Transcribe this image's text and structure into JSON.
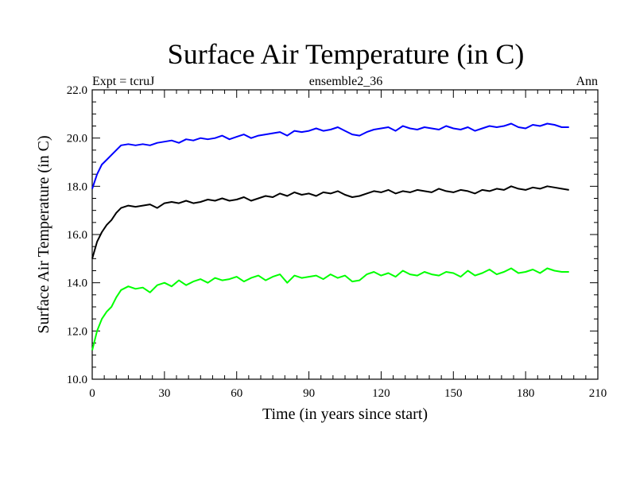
{
  "chart_data": {
    "type": "line",
    "title": "Surface Air Temperature (in C)",
    "subtitle_left": "Expt = tcruJ",
    "subtitle_center": "ensemble2_36",
    "subtitle_right": "Ann",
    "xlabel": "Time (in years since start)",
    "ylabel": "Surface Air Temperature (in C)",
    "xlim": [
      0,
      210
    ],
    "ylim": [
      10.0,
      22.0
    ],
    "xticks": [
      0,
      30,
      60,
      90,
      120,
      150,
      180,
      210
    ],
    "xtick_labels": [
      "0",
      "30",
      "60",
      "90",
      "120",
      "150",
      "180",
      "210"
    ],
    "yticks": [
      10,
      12,
      14,
      16,
      18,
      20,
      22
    ],
    "ytick_labels": [
      "10.0",
      "12.0",
      "14.0",
      "16.0",
      "18.0",
      "20.0",
      "22.0"
    ],
    "x": [
      0,
      2,
      4,
      6,
      8,
      10,
      12,
      15,
      18,
      21,
      24,
      27,
      30,
      33,
      36,
      39,
      42,
      45,
      48,
      51,
      54,
      57,
      60,
      63,
      66,
      69,
      72,
      75,
      78,
      81,
      84,
      87,
      90,
      93,
      96,
      99,
      102,
      105,
      108,
      111,
      114,
      117,
      120,
      123,
      126,
      129,
      132,
      135,
      138,
      141,
      144,
      147,
      150,
      153,
      156,
      159,
      162,
      165,
      168,
      171,
      174,
      177,
      180,
      183,
      186,
      189,
      192,
      195,
      198
    ],
    "series": [
      {
        "name": "blue",
        "color": "#0000ff",
        "values": [
          17.9,
          18.5,
          18.9,
          19.1,
          19.3,
          19.5,
          19.7,
          19.75,
          19.7,
          19.75,
          19.7,
          19.8,
          19.85,
          19.9,
          19.8,
          19.95,
          19.9,
          20.0,
          19.95,
          20.0,
          20.1,
          19.95,
          20.05,
          20.15,
          20.0,
          20.1,
          20.15,
          20.2,
          20.25,
          20.1,
          20.3,
          20.25,
          20.3,
          20.4,
          20.3,
          20.35,
          20.45,
          20.3,
          20.15,
          20.1,
          20.25,
          20.35,
          20.4,
          20.45,
          20.3,
          20.5,
          20.4,
          20.35,
          20.45,
          20.4,
          20.35,
          20.5,
          20.4,
          20.35,
          20.45,
          20.3,
          20.4,
          20.5,
          20.45,
          20.5,
          20.6,
          20.45,
          20.4,
          20.55,
          20.5,
          20.6,
          20.55,
          20.45,
          20.45
        ]
      },
      {
        "name": "black",
        "color": "#000000",
        "values": [
          15.0,
          15.7,
          16.1,
          16.4,
          16.6,
          16.9,
          17.1,
          17.2,
          17.15,
          17.2,
          17.25,
          17.1,
          17.3,
          17.35,
          17.3,
          17.4,
          17.3,
          17.35,
          17.45,
          17.4,
          17.5,
          17.4,
          17.45,
          17.55,
          17.4,
          17.5,
          17.6,
          17.55,
          17.7,
          17.6,
          17.75,
          17.65,
          17.7,
          17.6,
          17.75,
          17.7,
          17.8,
          17.65,
          17.55,
          17.6,
          17.7,
          17.8,
          17.75,
          17.85,
          17.7,
          17.8,
          17.75,
          17.85,
          17.8,
          17.75,
          17.9,
          17.8,
          17.75,
          17.85,
          17.8,
          17.7,
          17.85,
          17.8,
          17.9,
          17.85,
          18.0,
          17.9,
          17.85,
          17.95,
          17.9,
          18.0,
          17.95,
          17.9,
          17.85
        ]
      },
      {
        "name": "green",
        "color": "#00ff00",
        "values": [
          11.2,
          12.0,
          12.5,
          12.8,
          13.0,
          13.4,
          13.7,
          13.85,
          13.75,
          13.8,
          13.6,
          13.9,
          14.0,
          13.85,
          14.1,
          13.9,
          14.05,
          14.15,
          14.0,
          14.2,
          14.1,
          14.15,
          14.25,
          14.05,
          14.2,
          14.3,
          14.1,
          14.25,
          14.35,
          14.0,
          14.3,
          14.2,
          14.25,
          14.3,
          14.15,
          14.35,
          14.2,
          14.3,
          14.05,
          14.1,
          14.35,
          14.45,
          14.3,
          14.4,
          14.25,
          14.5,
          14.35,
          14.3,
          14.45,
          14.35,
          14.3,
          14.45,
          14.4,
          14.25,
          14.5,
          14.3,
          14.4,
          14.55,
          14.35,
          14.45,
          14.6,
          14.4,
          14.45,
          14.55,
          14.4,
          14.6,
          14.5,
          14.45,
          14.45
        ]
      }
    ]
  }
}
